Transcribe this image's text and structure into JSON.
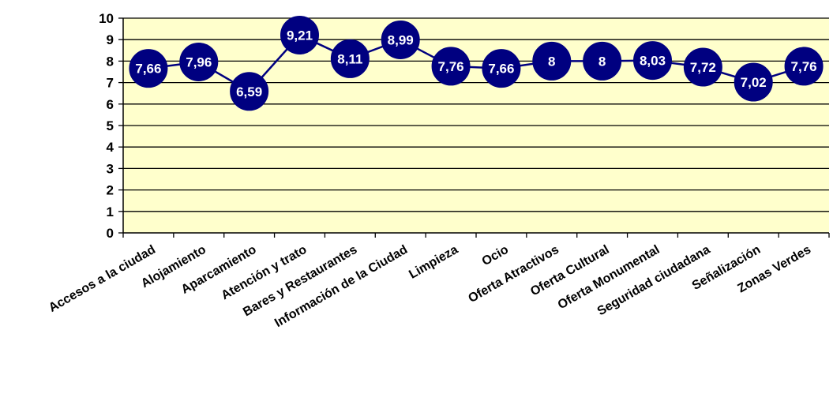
{
  "chart_data": {
    "type": "line",
    "title": "",
    "xlabel": "",
    "ylabel": "",
    "categories": [
      "Accesos a la ciudad",
      "Alojamiento",
      "Aparcamiento",
      "Atención y trato",
      "Bares y Restaurantes",
      "Información de la Ciudad",
      "Limpieza",
      "Ocio",
      "Oferta Atractivos",
      "Oferta Cultural",
      "Oferta Monumental",
      "Seguridad ciudadana",
      "Señalización",
      "Zonas Verdes"
    ],
    "values": [
      7.66,
      7.96,
      6.59,
      9.21,
      8.11,
      8.99,
      7.76,
      7.66,
      8,
      8,
      8.03,
      7.72,
      7.02,
      7.76
    ],
    "data_labels": [
      "7,66",
      "7,96",
      "6,59",
      "9,21",
      "8,11",
      "8,99",
      "7,76",
      "7,66",
      "8",
      "8",
      "8,03",
      "7,72",
      "7,02",
      "7,76"
    ],
    "y_ticks": [
      "0",
      "1",
      "2",
      "3",
      "4",
      "5",
      "6",
      "7",
      "8",
      "9",
      "10"
    ],
    "ylim": [
      0,
      10
    ],
    "grid": true,
    "legend": "none",
    "colors": {
      "plot_background": "#ffffcc",
      "line": "#000080",
      "marker": "#000080",
      "data_label": "#ffffff",
      "gridline": "#000000"
    }
  }
}
